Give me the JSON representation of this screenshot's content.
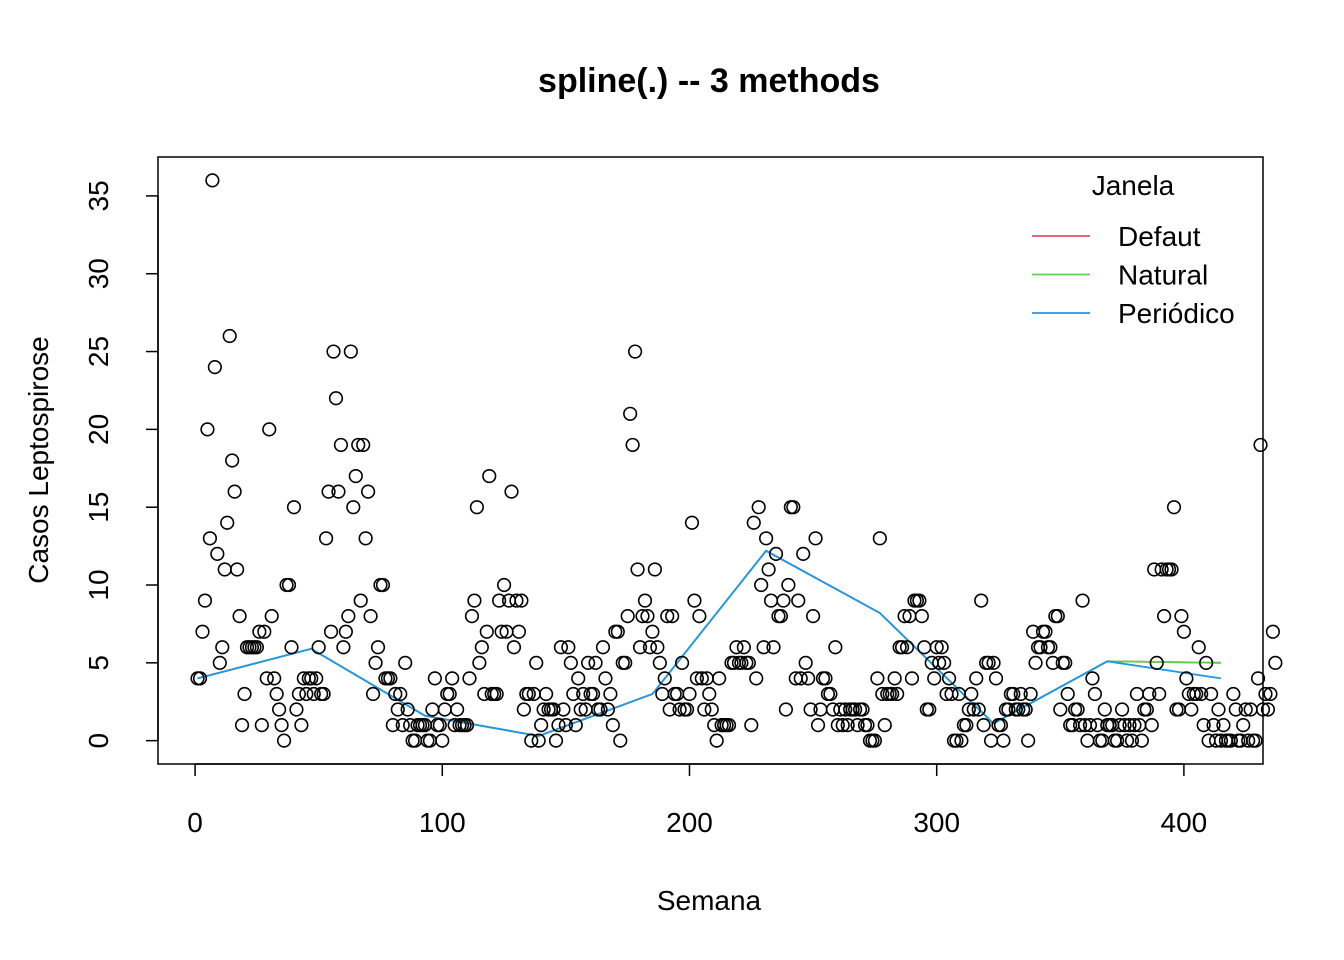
{
  "chart_data": {
    "type": "scatter",
    "title": "spline(.) -- 3 methods",
    "xlabel": "Semana",
    "ylabel": "Casos Leptospirose",
    "xlim": [
      -15,
      432
    ],
    "ylim": [
      -1.5,
      37.5
    ],
    "xticks": [
      0,
      100,
      200,
      300,
      400
    ],
    "yticks": [
      0,
      5,
      10,
      15,
      20,
      25,
      30,
      35
    ],
    "grid": false,
    "legend": {
      "title": "Janela",
      "placement": "top-right",
      "entries": [
        {
          "label": "Defaut",
          "color": "#DF536B"
        },
        {
          "label": "Natural",
          "color": "#61D04F"
        },
        {
          "label": "Periódico",
          "color": "#2297E6"
        }
      ]
    },
    "points": {
      "y": [
        4,
        4,
        7,
        9,
        20,
        13,
        36,
        24,
        12,
        5,
        6,
        11,
        14,
        26,
        18,
        16,
        11,
        8,
        1,
        3,
        6,
        6,
        6,
        6,
        6,
        7,
        1,
        7,
        4,
        20,
        8,
        4,
        3,
        2,
        1,
        0,
        10,
        10,
        6,
        15,
        2,
        3,
        1,
        4,
        3,
        4,
        4,
        3,
        4,
        6,
        3,
        3,
        13,
        16,
        7,
        25,
        22,
        16,
        19,
        6,
        7,
        8,
        25,
        15,
        17,
        19,
        9,
        19,
        13,
        16,
        8,
        3,
        5,
        6,
        10,
        10,
        4,
        4,
        4,
        1,
        3,
        2,
        3,
        1,
        5,
        2,
        1,
        0,
        0,
        1,
        1,
        1,
        1,
        0,
        0,
        2,
        4,
        1,
        1,
        0,
        2,
        3,
        3,
        4,
        1,
        2,
        1,
        1,
        1,
        1,
        4,
        8,
        9,
        15,
        5,
        6,
        3,
        7,
        17,
        3,
        3,
        3,
        9,
        7,
        10,
        7,
        9,
        16,
        6,
        9,
        7,
        9,
        2,
        3,
        3,
        0,
        3,
        5,
        0,
        1,
        2,
        3,
        2,
        2,
        2,
        0,
        1,
        6,
        2,
        1,
        6,
        5,
        3,
        1,
        4,
        2,
        3,
        2,
        5,
        3,
        3,
        5,
        2,
        2,
        6,
        4,
        2,
        3,
        1,
        7,
        7,
        0,
        5,
        5,
        8,
        21,
        19,
        25,
        11,
        6,
        8,
        9,
        8,
        6,
        7,
        11,
        6,
        5,
        3,
        4,
        8,
        2,
        8,
        3,
        3,
        2,
        5,
        2,
        2,
        3,
        14,
        9,
        4,
        8,
        4,
        2,
        4,
        3,
        2,
        1,
        0,
        4,
        1,
        1,
        1,
        1,
        5,
        5,
        6,
        5,
        5,
        6,
        5,
        5,
        1,
        14,
        4,
        15,
        10,
        6,
        13,
        11,
        9,
        6,
        12,
        8,
        8,
        9,
        2,
        10,
        15,
        15,
        4,
        9,
        4,
        12,
        5,
        4,
        2,
        8,
        13,
        1,
        2,
        4,
        4,
        3,
        3,
        2,
        6,
        1,
        2,
        1,
        2,
        1,
        2,
        2,
        2,
        1,
        2,
        2,
        1,
        1,
        0,
        0,
        0,
        4,
        13,
        3,
        1,
        3,
        3,
        3,
        4,
        3,
        6,
        6,
        8,
        6,
        8,
        4,
        9,
        9,
        9,
        8,
        6,
        2,
        2,
        5,
        4,
        6,
        5,
        6,
        5,
        3,
        4,
        3,
        0,
        0,
        3,
        0,
        1,
        1,
        2,
        3,
        2,
        4,
        2,
        9,
        1,
        5,
        5,
        0,
        5,
        4,
        1,
        1,
        0,
        2,
        2,
        3,
        3,
        2,
        2,
        3,
        2,
        2,
        0,
        3,
        7,
        5,
        6,
        6,
        7,
        7,
        6,
        6,
        5,
        8,
        8,
        2,
        5,
        5,
        3,
        1,
        1,
        2,
        2,
        1,
        9,
        1,
        0,
        1,
        4,
        3,
        1,
        0,
        0,
        2,
        1,
        1,
        1,
        0,
        0,
        1,
        2,
        1,
        0,
        1,
        0,
        1,
        3,
        1,
        0,
        2,
        2,
        3,
        1,
        11,
        5,
        3,
        11,
        8,
        11,
        11,
        11,
        15,
        2,
        2,
        8,
        7,
        4,
        3,
        2,
        3,
        3,
        6,
        3,
        1,
        5,
        0,
        3,
        1,
        0,
        2,
        0,
        1,
        0,
        0,
        0,
        3,
        2,
        0,
        0,
        1,
        2,
        0,
        2,
        0,
        0,
        4,
        19,
        2,
        3,
        2,
        3,
        7,
        5
      ],
      "x_start": 1,
      "x_step": 1
    },
    "series": [
      {
        "label": "Defaut",
        "color": "#DF536B",
        "x": [
          1,
          47,
          93,
          139,
          185,
          231,
          277,
          323,
          369,
          415
        ],
        "y": [
          4,
          5.9,
          1.6,
          0.3,
          3,
          12.2,
          8.2,
          1.1,
          5.1,
          5
        ]
      },
      {
        "label": "Natural",
        "color": "#61D04F",
        "x": [
          1,
          47,
          93,
          139,
          185,
          231,
          277,
          323,
          369,
          415
        ],
        "y": [
          4,
          5.9,
          1.6,
          0.3,
          3,
          12.2,
          8.2,
          1.1,
          5.1,
          5
        ]
      },
      {
        "label": "Periódico",
        "color": "#2297E6",
        "x": [
          1,
          47,
          93,
          139,
          185,
          231,
          277,
          323,
          369,
          415
        ],
        "y": [
          4,
          5.9,
          1.6,
          0.3,
          3,
          12.2,
          8.2,
          1.1,
          5.1,
          4
        ]
      }
    ]
  }
}
